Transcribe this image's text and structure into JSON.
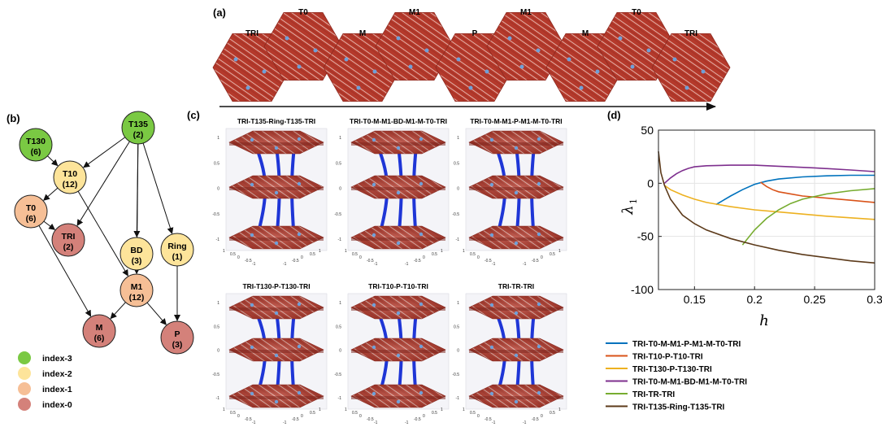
{
  "panels": {
    "a": "(a)",
    "b": "(b)",
    "c": "(c)",
    "d": "(d)"
  },
  "panel_a": {
    "hexagons": [
      "TRI",
      "T0",
      "M",
      "M1",
      "P",
      "M1",
      "M",
      "T0",
      "TRI"
    ]
  },
  "panel_b": {
    "nodes": [
      {
        "id": "T130",
        "line1": "T130",
        "line2": "(6)",
        "index": 3
      },
      {
        "id": "T135",
        "line1": "T135",
        "line2": "(2)",
        "index": 3
      },
      {
        "id": "T10",
        "line1": "T10",
        "line2": "(12)",
        "index": 2
      },
      {
        "id": "T0",
        "line1": "T0",
        "line2": "(6)",
        "index": 1
      },
      {
        "id": "TRI",
        "line1": "TRI",
        "line2": "(2)",
        "index": 0
      },
      {
        "id": "BD",
        "line1": "BD",
        "line2": "(3)",
        "index": 2
      },
      {
        "id": "Ring",
        "line1": "Ring",
        "line2": "(1)",
        "index": 2
      },
      {
        "id": "M1",
        "line1": "M1",
        "line2": "(12)",
        "index": 1
      },
      {
        "id": "M",
        "line1": "M",
        "line2": "(6)",
        "index": 0
      },
      {
        "id": "P",
        "line1": "P",
        "line2": "(3)",
        "index": 0
      }
    ],
    "edges": [
      [
        "T130",
        "T10"
      ],
      [
        "T135",
        "T10"
      ],
      [
        "T135",
        "TRI"
      ],
      [
        "T135",
        "BD"
      ],
      [
        "T135",
        "Ring"
      ],
      [
        "T135",
        "M1"
      ],
      [
        "T10",
        "T0"
      ],
      [
        "T10",
        "M1"
      ],
      [
        "T0",
        "TRI"
      ],
      [
        "T0",
        "M"
      ],
      [
        "BD",
        "M1"
      ],
      [
        "Ring",
        "P"
      ],
      [
        "M1",
        "M"
      ],
      [
        "M1",
        "P"
      ]
    ],
    "legend": [
      {
        "label": "index-3",
        "color": "#7ac943"
      },
      {
        "label": "index-2",
        "color": "#fde49a"
      },
      {
        "label": "index-1",
        "color": "#f6bf96"
      },
      {
        "label": "index-0",
        "color": "#d4817a"
      }
    ]
  },
  "panel_c": {
    "titles": [
      "TRI-T135-Ring-T135-TRI",
      "TRI-T0-M-M1-BD-M1-M-T0-TRI",
      "TRI-T0-M-M1-P-M1-M-T0-TRI",
      "TRI-T130-P-T130-TRI",
      "TRI-T10-P-T10-TRI",
      "TRI-TR-TRI"
    ],
    "z_ticks": [
      "1",
      "0.5",
      "0",
      "-0.5",
      "-1"
    ],
    "x_ticks": [
      "1",
      "0.5",
      "0",
      "-0.5",
      "-1"
    ],
    "y_ticks": [
      "-1",
      "-0.5",
      "0",
      "0.5",
      "1"
    ]
  },
  "chart_data": {
    "type": "line",
    "title": "",
    "xlabel": "h",
    "ylabel": "λ1",
    "ylabel_main": "λ",
    "ylabel_sub": "1",
    "xlim": [
      0.12,
      0.3
    ],
    "ylim": [
      -100,
      50
    ],
    "xticks": [
      0.15,
      0.2,
      0.25,
      0.3
    ],
    "xtick_labels": [
      "0.15",
      "0.2",
      "0.25",
      "0.3"
    ],
    "yticks": [
      50,
      0,
      -50,
      -100
    ],
    "ytick_labels": [
      "50",
      "0",
      "-50",
      "-100"
    ],
    "grid": true,
    "legend_position": "below",
    "series": [
      {
        "name": "TRI-T0-M-M1-P-M1-M-T0-TRI",
        "color": "#0072bd",
        "x": [
          0.168,
          0.18,
          0.19,
          0.2,
          0.21,
          0.22,
          0.24,
          0.26,
          0.28,
          0.3
        ],
        "y": [
          -20,
          -12,
          -6,
          -1,
          2,
          4,
          6,
          7,
          7.5,
          7.5
        ]
      },
      {
        "name": "TRI-T10-P-T10-TRI",
        "color": "#d95319",
        "x": [
          0.205,
          0.21,
          0.215,
          0.22,
          0.23,
          0.24,
          0.26,
          0.28,
          0.3
        ],
        "y": [
          1,
          -3,
          -6,
          -8,
          -10,
          -12,
          -14,
          -16,
          -18
        ]
      },
      {
        "name": "TRI-T130-P-T130-TRI",
        "color": "#edb120",
        "x": [
          0.125,
          0.13,
          0.14,
          0.15,
          0.16,
          0.17,
          0.18,
          0.2,
          0.22,
          0.24,
          0.26,
          0.28,
          0.3
        ],
        "y": [
          -2,
          -6,
          -11,
          -15,
          -18,
          -20,
          -22,
          -25,
          -27,
          -29,
          -31,
          -32.5,
          -34
        ]
      },
      {
        "name": "TRI-T0-M-M1-BD-M1-M-T0-TRI",
        "color": "#7e2f8e",
        "x": [
          0.125,
          0.13,
          0.135,
          0.14,
          0.145,
          0.15,
          0.16,
          0.18,
          0.2,
          0.22,
          0.25,
          0.28,
          0.3
        ],
        "y": [
          0,
          5,
          9,
          12,
          14,
          15.5,
          16.5,
          17,
          17,
          16,
          14.5,
          12.5,
          11
        ]
      },
      {
        "name": "TRI-TR-TRI",
        "color": "#77ac30",
        "x": [
          0.19,
          0.2,
          0.21,
          0.22,
          0.23,
          0.24,
          0.26,
          0.28,
          0.3
        ],
        "y": [
          -58,
          -44,
          -33,
          -25,
          -19,
          -15,
          -10,
          -7,
          -5
        ]
      },
      {
        "name": "TRI-T135-Ring-T135-TRI",
        "color": "#5c3a1a",
        "x": [
          0.12,
          0.122,
          0.125,
          0.13,
          0.14,
          0.15,
          0.16,
          0.18,
          0.2,
          0.22,
          0.24,
          0.26,
          0.28,
          0.3
        ],
        "y": [
          30,
          10,
          -2,
          -15,
          -30,
          -38,
          -44,
          -52,
          -58,
          -63,
          -67,
          -70,
          -73,
          -75
        ]
      }
    ]
  }
}
